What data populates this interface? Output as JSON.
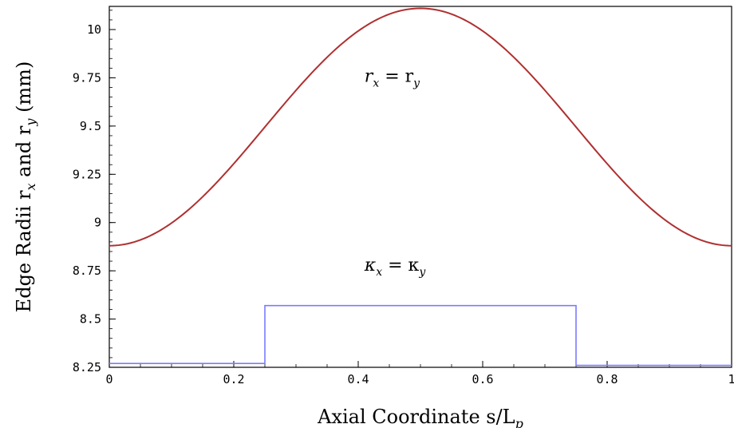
{
  "chart_data": {
    "type": "line",
    "xlabel": "Axial Coordinate s/L",
    "xlabel_sub": "p",
    "ylabel": "Edge Radii r",
    "ylabel_parts": {
      "sub_x": "x",
      "and": " and r",
      "sub_y": "y",
      "unit": " (mm)"
    },
    "xlim": [
      0,
      1
    ],
    "ylim": [
      8.25,
      10.12
    ],
    "x_ticks": [
      0,
      0.2,
      0.4,
      0.6,
      0.8,
      1
    ],
    "x_tick_labels": [
      "0",
      "0.2",
      "0.4",
      "0.6",
      "0.8",
      "1"
    ],
    "y_ticks": [
      8.25,
      8.5,
      8.75,
      9,
      9.25,
      9.5,
      9.75,
      10
    ],
    "y_tick_labels": [
      "8.25",
      "8.5",
      "8.75",
      "9",
      "9.25",
      "9.5",
      "9.75",
      "10"
    ],
    "grid": false,
    "series": [
      {
        "color": "#b03030",
        "x": [
          0,
          0.05,
          0.1,
          0.15,
          0.2,
          0.25,
          0.3,
          0.35,
          0.4,
          0.45,
          0.5,
          0.55,
          0.6,
          0.65,
          0.7,
          0.75,
          0.8,
          0.85,
          0.9,
          0.95,
          1
        ],
        "y": [
          8.88,
          8.89,
          8.93,
          9.03,
          9.2,
          9.44,
          9.66,
          9.85,
          9.99,
          10.09,
          10.11,
          10.09,
          9.99,
          9.85,
          9.66,
          9.44,
          9.2,
          9.03,
          8.93,
          8.89,
          8.88
        ]
      },
      {
        "color": "#7b7bff",
        "x": [
          0,
          0.25,
          0.25,
          0.75,
          0.75,
          1
        ],
        "y": [
          8.27,
          8.27,
          8.57,
          8.57,
          8.26,
          8.26
        ]
      }
    ],
    "annotations": [
      {
        "label": "r",
        "sub1": "x",
        "eq": " = r",
        "sub2": "y",
        "x": 0.41,
        "y": 9.73
      },
      {
        "label": "κ",
        "sub1": "x",
        "eq": " = κ",
        "sub2": "y",
        "x": 0.41,
        "y": 8.75
      }
    ]
  }
}
